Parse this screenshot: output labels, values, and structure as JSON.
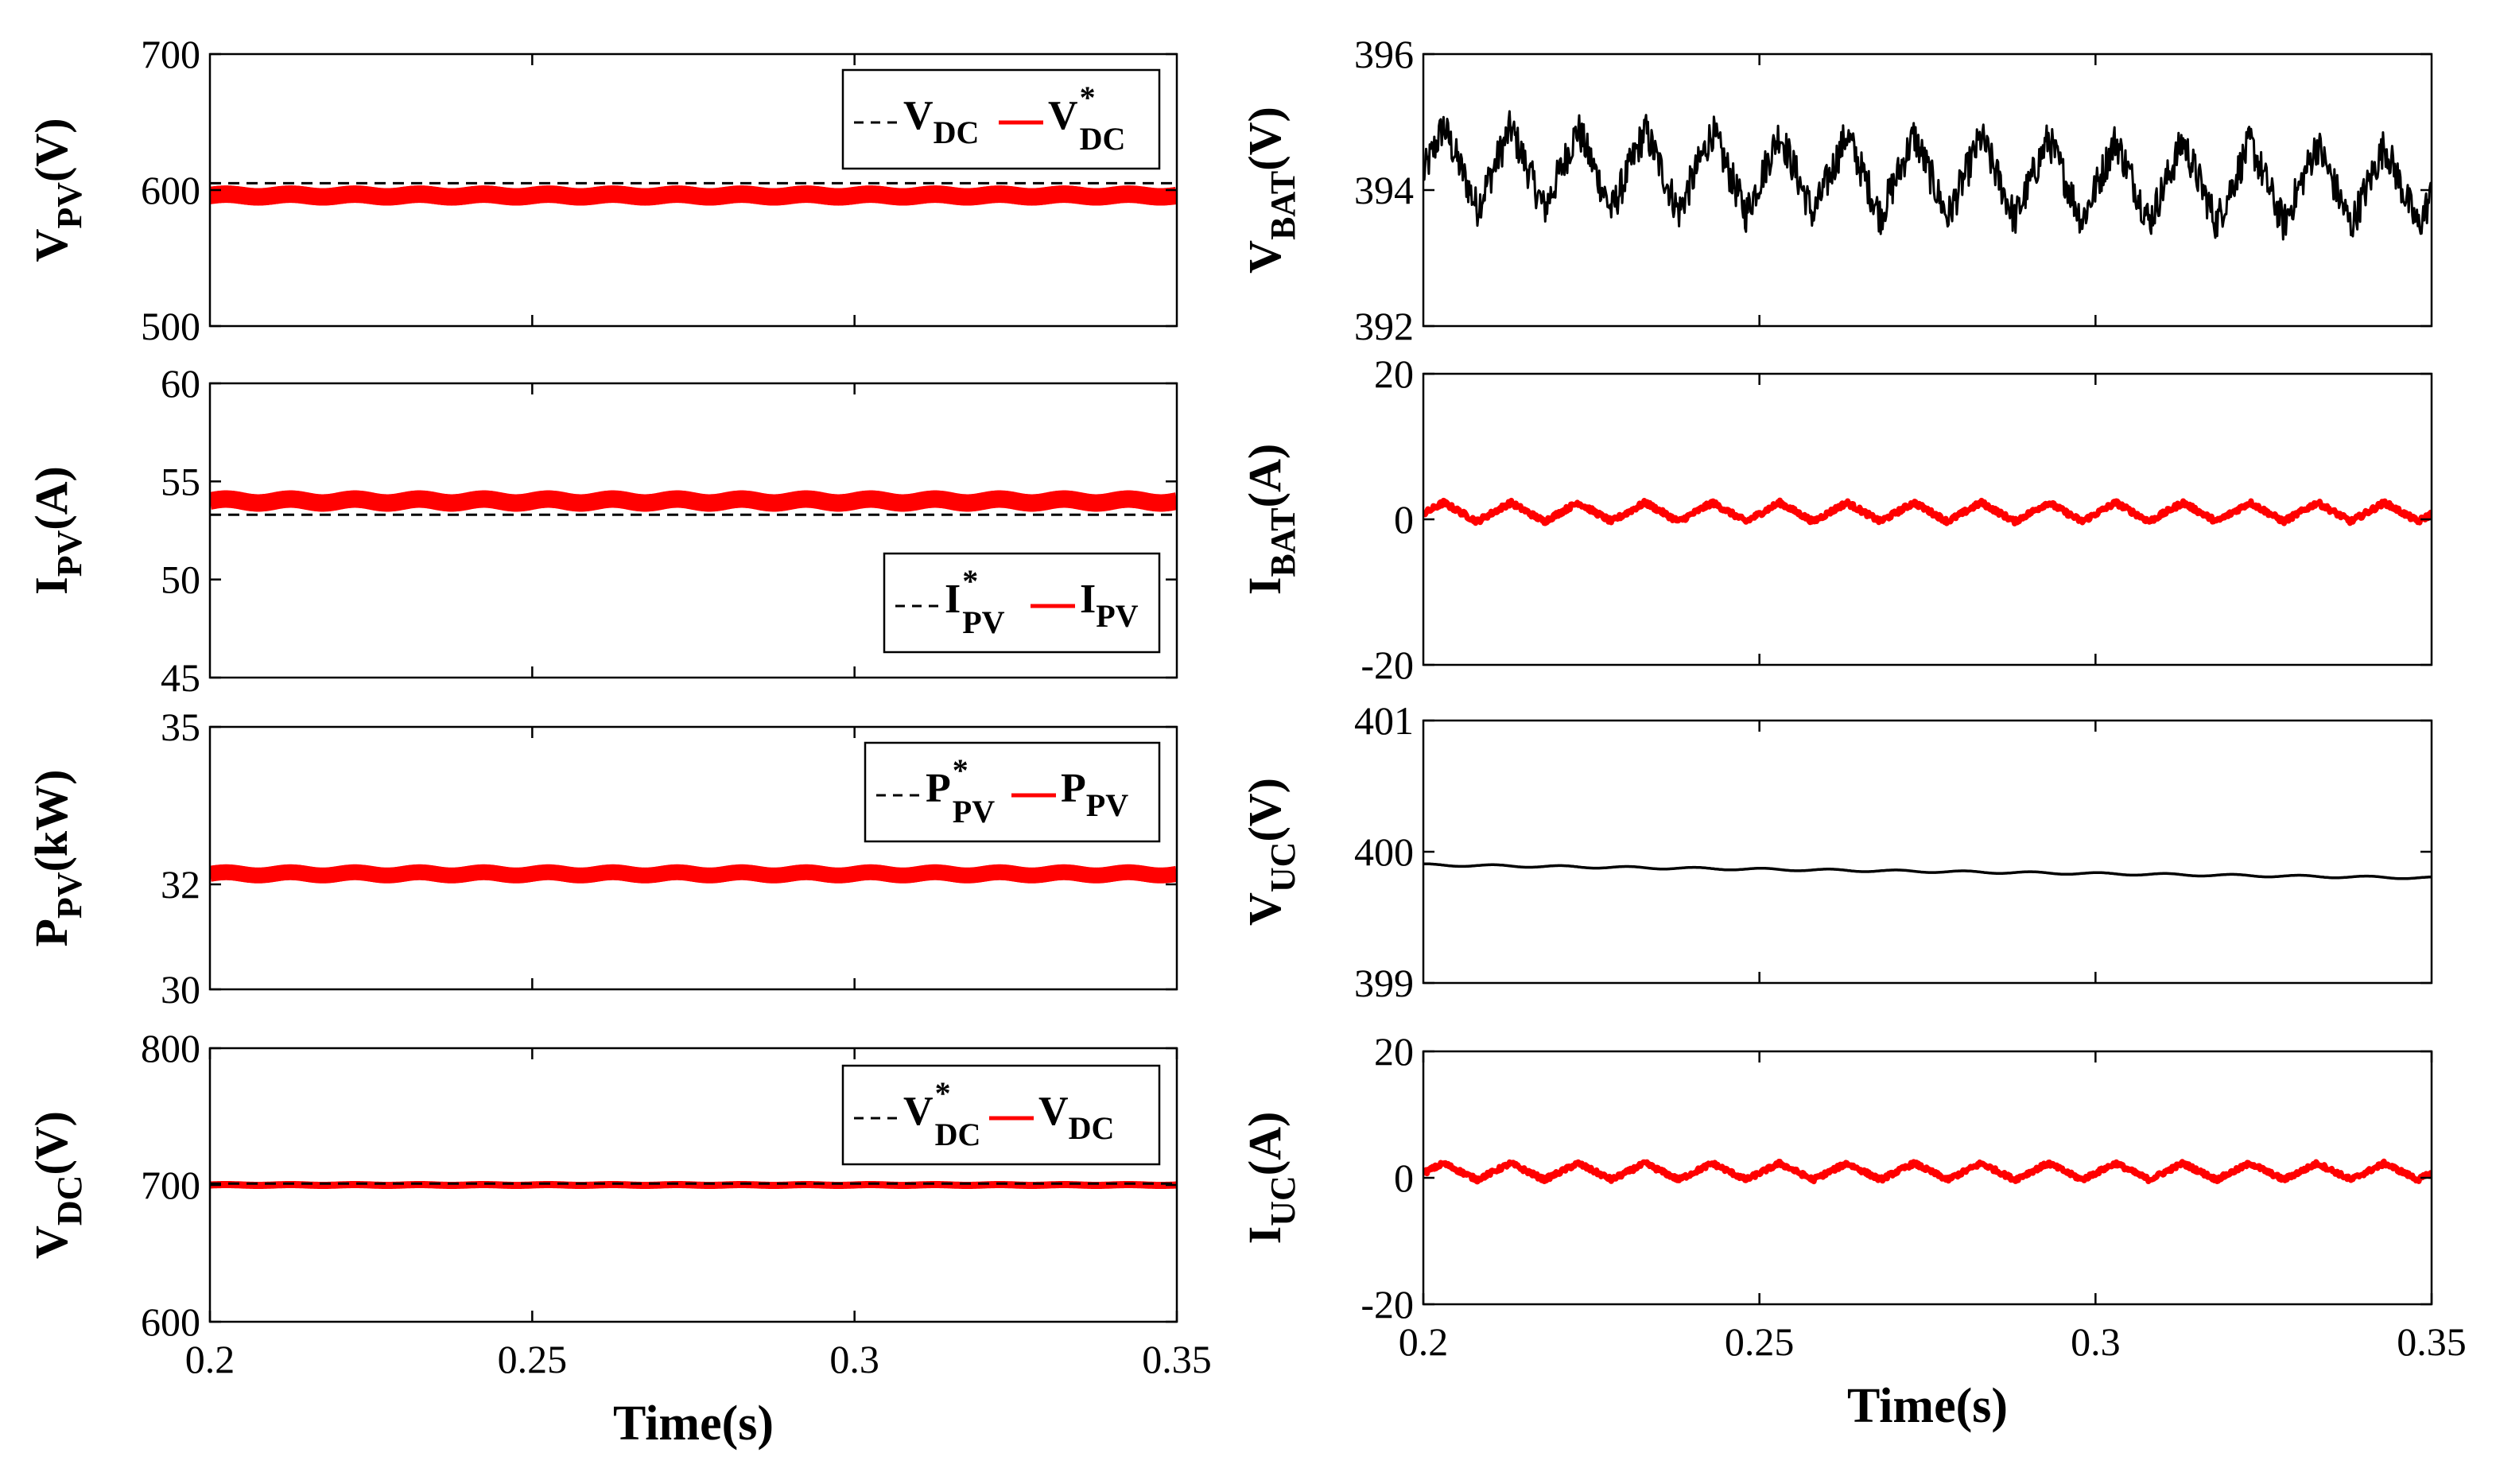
{
  "chart_data": [
    {
      "id": "p1",
      "type": "line",
      "ylabel": "V",
      "ylabel_sub": "PV",
      "ylabel_unit": "(V)",
      "ylim": [
        500,
        700
      ],
      "yticks": [
        "500",
        "600",
        "700"
      ],
      "ytick_vals": [
        500,
        600,
        700
      ],
      "xlim": [
        0.2,
        0.35
      ],
      "xticks": [],
      "xlabel": "",
      "legend": [
        {
          "name": "V",
          "sub": "DC",
          "sup": "",
          "style": "dash",
          "color": "#000000"
        },
        {
          "name": "V",
          "sub": "DC",
          "sup": "*",
          "style": "solid",
          "color": "#ff0000"
        }
      ],
      "legend_position": "top-right",
      "series": [
        {
          "name": "V_DC",
          "color": "#000000",
          "dash": true,
          "width": 3,
          "base": 605,
          "amp": 0,
          "period": 0,
          "noise": 0
        },
        {
          "name": "V_DC*",
          "color": "#ff0000",
          "dash": false,
          "width": 22,
          "base": 596,
          "amp": 1,
          "period": 0.01,
          "noise": 0
        }
      ]
    },
    {
      "id": "p2",
      "type": "line",
      "ylabel": "I",
      "ylabel_sub": "PV",
      "ylabel_unit": "(A)",
      "ylim": [
        45,
        60
      ],
      "yticks": [
        "45",
        "50",
        "55",
        "60"
      ],
      "ytick_vals": [
        45,
        50,
        55,
        60
      ],
      "xlim": [
        0.2,
        0.35
      ],
      "xticks": [],
      "xlabel": "",
      "legend": [
        {
          "name": "I",
          "sub": "PV",
          "sup": "*",
          "style": "dash",
          "color": "#000000"
        },
        {
          "name": "I",
          "sub": "PV",
          "sup": "",
          "style": "solid",
          "color": "#ff0000"
        }
      ],
      "legend_position": "bottom-right",
      "series": [
        {
          "name": "I_PV*",
          "color": "#000000",
          "dash": true,
          "width": 3,
          "base": 53.3,
          "amp": 0,
          "period": 0,
          "noise": 0
        },
        {
          "name": "I_PV",
          "color": "#ff0000",
          "dash": false,
          "width": 22,
          "base": 54,
          "amp": 0.1,
          "period": 0.01,
          "noise": 0
        }
      ]
    },
    {
      "id": "p3",
      "type": "line",
      "ylabel": "P",
      "ylabel_sub": "PV",
      "ylabel_unit": "(kW)",
      "ylim": [
        30,
        35
      ],
      "yticks": [
        "30",
        "32",
        "35"
      ],
      "ytick_vals": [
        30,
        32,
        35
      ],
      "xlim": [
        0.2,
        0.35
      ],
      "xticks": [],
      "xlabel": "",
      "legend": [
        {
          "name": "P",
          "sub": "PV",
          "sup": "*",
          "style": "dash",
          "color": "#000000"
        },
        {
          "name": "P",
          "sub": "PV",
          "sup": "",
          "style": "solid",
          "color": "#ff0000"
        }
      ],
      "legend_position": "top-right",
      "series": [
        {
          "name": "P_PV*",
          "color": "#000000",
          "dash": true,
          "width": 3,
          "base": 32.2,
          "amp": 0,
          "period": 0,
          "noise": 0
        },
        {
          "name": "P_PV",
          "color": "#ff0000",
          "dash": false,
          "width": 20,
          "base": 32.2,
          "amp": 0.03,
          "period": 0.01,
          "noise": 0
        }
      ]
    },
    {
      "id": "p4",
      "type": "line",
      "ylabel": "V",
      "ylabel_sub": "DC",
      "ylabel_unit": "(V)",
      "ylim": [
        600,
        800
      ],
      "yticks": [
        "600",
        "700",
        "800"
      ],
      "ytick_vals": [
        600,
        700,
        800
      ],
      "xlim": [
        0.2,
        0.35
      ],
      "xticks": [
        "0.2",
        "0.25",
        "0.3",
        "0.35"
      ],
      "xtick_vals": [
        0.2,
        0.25,
        0.3,
        0.35
      ],
      "xlabel": "Time(s)",
      "legend": [
        {
          "name": "V",
          "sub": "DC",
          "sup": "*",
          "style": "dash",
          "color": "#000000"
        },
        {
          "name": "V",
          "sub": "DC",
          "sup": "",
          "style": "solid",
          "color": "#ff0000"
        }
      ],
      "legend_position": "top-right",
      "series": [
        {
          "name": "V_DC",
          "color": "#ff0000",
          "dash": false,
          "width": 9,
          "base": 700,
          "amp": 0.3,
          "period": 0.01,
          "noise": 0
        },
        {
          "name": "V_DC*",
          "color": "#000000",
          "dash": true,
          "width": 3,
          "base": 701,
          "amp": 0,
          "period": 0,
          "noise": 0
        }
      ]
    },
    {
      "id": "p5",
      "type": "line",
      "ylabel": "V",
      "ylabel_sub": "BAT",
      "ylabel_unit": "(V)",
      "ylim": [
        392,
        396
      ],
      "yticks": [
        "392",
        "394",
        "396"
      ],
      "ytick_vals": [
        392,
        394,
        396
      ],
      "xlim": [
        0.2,
        0.35
      ],
      "xticks": [],
      "xlabel": "",
      "legend": [],
      "series": [
        {
          "name": "V_BAT",
          "color": "#000000",
          "dash": false,
          "width": 3,
          "base": 394.35,
          "amp": 0.6,
          "period": 0.01,
          "noise": 0.28,
          "drift": -1.2,
          "triangle": true,
          "phase": 0.2
        }
      ]
    },
    {
      "id": "p6",
      "type": "line",
      "ylabel": "I",
      "ylabel_sub": "BAT",
      "ylabel_unit": "(A)",
      "ylim": [
        -20,
        20
      ],
      "yticks": [
        "-20",
        "0",
        "20"
      ],
      "ytick_vals": [
        -20,
        0,
        20
      ],
      "xlim": [
        0.2,
        0.35
      ],
      "xticks": [],
      "xlabel": "",
      "legend": [],
      "series": [
        {
          "name": "I_BAT",
          "color": "#ff0000",
          "dash": false,
          "width": 7,
          "base": 1,
          "amp": 1.3,
          "period": 0.01,
          "noise": 0.35,
          "triangle": true,
          "phase": 0.2
        }
      ]
    },
    {
      "id": "p7",
      "type": "line",
      "ylabel": "V",
      "ylabel_sub": "UC",
      "ylabel_unit": "(V)",
      "ylim": [
        399,
        401
      ],
      "yticks": [
        "399",
        "400",
        "401"
      ],
      "ytick_vals": [
        399,
        400,
        401
      ],
      "xlim": [
        0.2,
        0.35
      ],
      "xticks": [],
      "xlabel": "",
      "legend": [],
      "series": [
        {
          "name": "V_UC",
          "color": "#000000",
          "dash": false,
          "width": 3.5,
          "base": 399.9,
          "amp": 0.008,
          "period": 0.01,
          "noise": 0,
          "drift": -0.4,
          "phase": 0.2
        }
      ]
    },
    {
      "id": "p8",
      "type": "line",
      "ylabel": "I",
      "ylabel_sub": "UC",
      "ylabel_unit": "(A)",
      "ylim": [
        -20,
        20
      ],
      "yticks": [
        "-20",
        "0",
        "20"
      ],
      "ytick_vals": [
        -20,
        0,
        20
      ],
      "xlim": [
        0.2,
        0.35
      ],
      "xticks": [
        "0.2",
        "0.25",
        "0.3",
        "0.35"
      ],
      "xtick_vals": [
        0.2,
        0.25,
        0.3,
        0.35
      ],
      "xlabel": "Time(s)",
      "legend": [],
      "series": [
        {
          "name": "I_UC",
          "color": "#ff0000",
          "dash": false,
          "width": 7,
          "base": 1,
          "amp": 1.3,
          "period": 0.01,
          "noise": 0.35,
          "triangle": true,
          "phase": 0.2
        }
      ]
    }
  ]
}
